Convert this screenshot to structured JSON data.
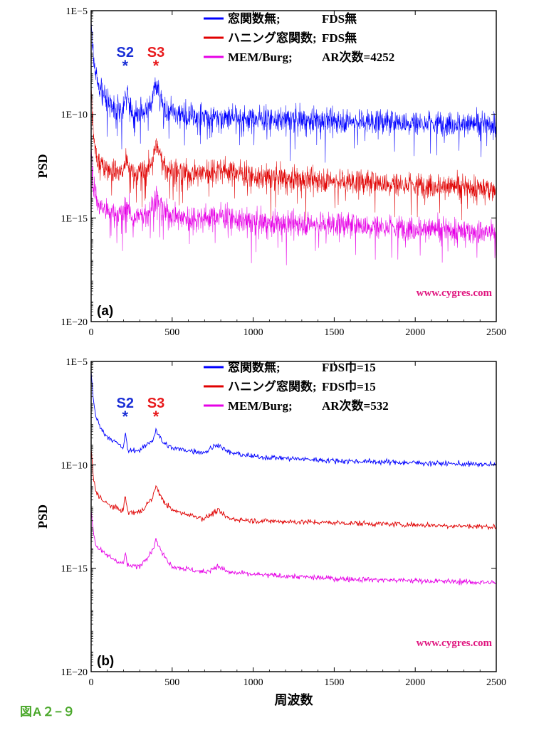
{
  "figure_caption": "図A２−９",
  "watermark": "www.cygres.com",
  "chart_data": [
    {
      "type": "line",
      "panel_label": "(a)",
      "xlabel": "",
      "ylabel": "PSD",
      "xlim": [
        0,
        2500
      ],
      "y_log_range": [
        -20,
        -5
      ],
      "x_ticks": [
        0,
        500,
        1000,
        1500,
        2000,
        2500
      ],
      "y_ticks": [
        "1E−5",
        "1E−10",
        "1E−15",
        "1E−20"
      ],
      "y_tick_exponents": [
        -5,
        -10,
        -15,
        -20
      ],
      "annotations": [
        {
          "label": "S2",
          "marker": "*",
          "x": 210,
          "color": "#1a2fd6"
        },
        {
          "label": "S3",
          "marker": "*",
          "x": 400,
          "color": "#e8191c"
        }
      ],
      "series": [
        {
          "name": "窓関数無;",
          "note": "FDS無",
          "color": "#0000ff",
          "noise": "high",
          "points": [
            [
              0,
              -5.5
            ],
            [
              15,
              -7.3
            ],
            [
              40,
              -8.5
            ],
            [
              100,
              -9.4
            ],
            [
              200,
              -9.9
            ],
            [
              210,
              -8.9
            ],
            [
              260,
              -10.0
            ],
            [
              350,
              -9.9
            ],
            [
              400,
              -8.6
            ],
            [
              460,
              -9.8
            ],
            [
              600,
              -10.1
            ],
            [
              800,
              -10.1
            ],
            [
              1000,
              -10.2
            ],
            [
              1500,
              -10.3
            ],
            [
              2000,
              -10.4
            ],
            [
              2500,
              -10.5
            ]
          ]
        },
        {
          "name": "ハニング窓関数;",
          "note": "FDS無",
          "color": "#e00000",
          "noise": "high",
          "points": [
            [
              0,
              -8.6
            ],
            [
              15,
              -11.2
            ],
            [
              40,
              -12.3
            ],
            [
              100,
              -12.6
            ],
            [
              200,
              -12.8
            ],
            [
              210,
              -12.2
            ],
            [
              260,
              -12.9
            ],
            [
              350,
              -12.7
            ],
            [
              400,
              -11.5
            ],
            [
              460,
              -12.6
            ],
            [
              600,
              -12.9
            ],
            [
              800,
              -12.6
            ],
            [
              1000,
              -13.0
            ],
            [
              1500,
              -13.2
            ],
            [
              2000,
              -13.4
            ],
            [
              2500,
              -13.6
            ]
          ]
        },
        {
          "name": "MEM/Burg;",
          "note": "AR次数=4252",
          "color": "#e600e6",
          "noise": "high",
          "points": [
            [
              0,
              -11.6
            ],
            [
              15,
              -13.4
            ],
            [
              40,
              -14.3
            ],
            [
              100,
              -14.7
            ],
            [
              200,
              -14.9
            ],
            [
              210,
              -14.3
            ],
            [
              260,
              -15.0
            ],
            [
              350,
              -14.8
            ],
            [
              400,
              -14.0
            ],
            [
              460,
              -14.8
            ],
            [
              600,
              -15.0
            ],
            [
              800,
              -14.9
            ],
            [
              1000,
              -15.2
            ],
            [
              1500,
              -15.3
            ],
            [
              2000,
              -15.5
            ],
            [
              2500,
              -15.7
            ]
          ]
        }
      ]
    },
    {
      "type": "line",
      "panel_label": "(b)",
      "xlabel": "周波数",
      "ylabel": "PSD",
      "xlim": [
        0,
        2500
      ],
      "y_log_range": [
        -20,
        -5
      ],
      "x_ticks": [
        0,
        500,
        1000,
        1500,
        2000,
        2500
      ],
      "y_ticks": [
        "1E−5",
        "1E−10",
        "1E−15",
        "1E−20"
      ],
      "y_tick_exponents": [
        -5,
        -10,
        -15,
        -20
      ],
      "annotations": [
        {
          "label": "S2",
          "marker": "*",
          "x": 210,
          "color": "#1a2fd6"
        },
        {
          "label": "S3",
          "marker": "*",
          "x": 400,
          "color": "#e8191c"
        }
      ],
      "series": [
        {
          "name": "窓関数無;",
          "note": "FDS巾=15",
          "color": "#0000ff",
          "noise": "low",
          "points": [
            [
              0,
              -5.5
            ],
            [
              15,
              -7.0
            ],
            [
              30,
              -7.7
            ],
            [
              80,
              -8.5
            ],
            [
              150,
              -8.9
            ],
            [
              200,
              -9.2
            ],
            [
              210,
              -8.4
            ],
            [
              225,
              -9.3
            ],
            [
              300,
              -9.3
            ],
            [
              380,
              -8.8
            ],
            [
              400,
              -8.3
            ],
            [
              440,
              -8.9
            ],
            [
              500,
              -9.2
            ],
            [
              700,
              -9.4
            ],
            [
              780,
              -9.0
            ],
            [
              850,
              -9.4
            ],
            [
              1000,
              -9.6
            ],
            [
              1500,
              -9.8
            ],
            [
              2000,
              -9.9
            ],
            [
              2500,
              -10.0
            ]
          ]
        },
        {
          "name": "ハニング窓関数;",
          "note": "FDS巾=15",
          "color": "#e00000",
          "noise": "low",
          "points": [
            [
              0,
              -9.2
            ],
            [
              15,
              -10.7
            ],
            [
              30,
              -11.3
            ],
            [
              80,
              -11.8
            ],
            [
              150,
              -12.1
            ],
            [
              200,
              -12.2
            ],
            [
              210,
              -11.4
            ],
            [
              225,
              -12.3
            ],
            [
              300,
              -12.3
            ],
            [
              380,
              -11.6
            ],
            [
              400,
              -11.0
            ],
            [
              440,
              -11.7
            ],
            [
              500,
              -12.2
            ],
            [
              700,
              -12.6
            ],
            [
              780,
              -12.2
            ],
            [
              850,
              -12.6
            ],
            [
              1000,
              -12.7
            ],
            [
              1500,
              -12.8
            ],
            [
              2000,
              -12.9
            ],
            [
              2500,
              -13.0
            ]
          ]
        },
        {
          "name": "MEM/Burg;",
          "note": "AR次数=532",
          "color": "#e600e6",
          "noise": "low",
          "points": [
            [
              0,
              -12.2
            ],
            [
              15,
              -13.3
            ],
            [
              30,
              -13.9
            ],
            [
              80,
              -14.3
            ],
            [
              150,
              -14.6
            ],
            [
              200,
              -14.8
            ],
            [
              210,
              -14.2
            ],
            [
              225,
              -14.9
            ],
            [
              300,
              -14.9
            ],
            [
              380,
              -14.1
            ],
            [
              400,
              -13.6
            ],
            [
              440,
              -14.3
            ],
            [
              500,
              -14.9
            ],
            [
              700,
              -15.2
            ],
            [
              780,
              -14.9
            ],
            [
              850,
              -15.2
            ],
            [
              1000,
              -15.3
            ],
            [
              1500,
              -15.5
            ],
            [
              2000,
              -15.6
            ],
            [
              2500,
              -15.7
            ]
          ]
        }
      ]
    }
  ]
}
